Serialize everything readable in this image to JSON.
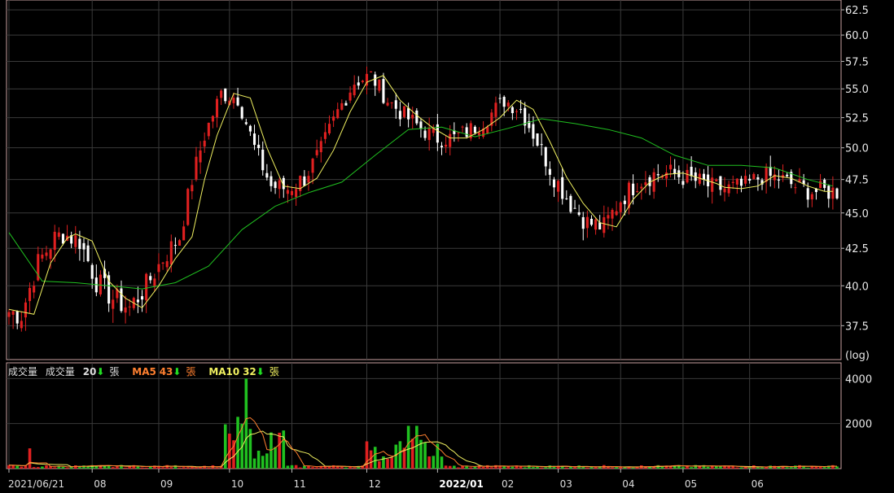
{
  "colors": {
    "background": "#000000",
    "frame": "#c8a0a0",
    "grid": "#3a3a3a",
    "up_candle": "#e02020",
    "down_candle": "#ffffff",
    "ma_short": "#f0f060",
    "ma_long": "#20c020",
    "vol_up": "#e02020",
    "vol_down": "#20c020",
    "vol_ma5": "#ff8030",
    "vol_ma10": "#f0f060"
  },
  "volume_legend": {
    "label": "成交量",
    "vol_label": "成交量",
    "vol_value": "20",
    "vol_unit": "張",
    "ma5_label": "MA5",
    "ma5_value": "43",
    "ma5_unit": "張",
    "ma10_label": "MA10",
    "ma10_value": "32",
    "ma10_unit": "張",
    "arrow": "⬇"
  },
  "chart_data": [
    {
      "type": "candlestick",
      "title": "",
      "y_scale": "log",
      "y_scale_label": "(log)",
      "ylim": [
        35.5,
        63.5
      ],
      "y_ticks": [
        "62.5",
        "60.0",
        "57.5",
        "55.0",
        "52.5",
        "50.0",
        "47.5",
        "45.0",
        "42.5",
        "40.0",
        "37.5"
      ],
      "x_tick_labels": [
        "2021/06/21",
        "08",
        "09",
        "10",
        "11",
        "12",
        "2022/01",
        "02",
        "03",
        "04",
        "05",
        "06"
      ],
      "grid": true,
      "series": [
        {
          "name": "",
          "kind": "ma_short",
          "x": [
            0,
            6,
            10,
            14,
            16,
            20,
            24,
            28,
            32,
            36,
            40,
            44,
            47,
            50,
            54,
            58,
            62,
            66,
            70,
            74,
            78,
            82,
            86,
            90,
            94,
            98,
            102,
            106,
            110,
            114,
            118,
            122,
            126,
            130,
            134,
            138,
            142,
            146,
            150,
            154,
            158,
            162,
            166,
            170,
            172,
            176,
            180,
            184,
            188,
            192,
            196,
            198
          ],
          "values": [
            38.5,
            38.2,
            41.5,
            43.2,
            43.5,
            43.0,
            40.3,
            39.2,
            38.6,
            40.0,
            41.8,
            43.3,
            47.5,
            51.0,
            54.6,
            54.2,
            50.0,
            47.0,
            46.8,
            47.6,
            49.8,
            53.0,
            55.6,
            56.2,
            54.0,
            52.7,
            51.6,
            50.8,
            50.8,
            51.5,
            52.5,
            54.0,
            53.2,
            50.5,
            47.7,
            45.7,
            44.3,
            44.0,
            46.0,
            47.3,
            47.9,
            48.0,
            47.6,
            47.2,
            46.9,
            46.8,
            47.0,
            47.8,
            47.6,
            47.0,
            46.6,
            46.6
          ]
        },
        {
          "name": "",
          "kind": "ma_long",
          "x": [
            0,
            8,
            16,
            24,
            32,
            40,
            48,
            56,
            64,
            72,
            80,
            88,
            96,
            104,
            112,
            120,
            128,
            136,
            144,
            152,
            160,
            168,
            176,
            184,
            192,
            198
          ],
          "values": [
            43.6,
            40.3,
            40.2,
            40.0,
            39.8,
            40.2,
            41.3,
            43.8,
            45.5,
            46.5,
            47.3,
            49.4,
            51.5,
            51.7,
            50.9,
            51.6,
            52.4,
            52.0,
            51.5,
            50.8,
            49.4,
            48.6,
            48.6,
            48.4,
            47.5,
            47.0
          ]
        }
      ],
      "candles_note": "Daily OHLC candlesticks, red = up, white = down"
    },
    {
      "type": "bar",
      "title": "",
      "ylabel": "成交量",
      "ylim": [
        0,
        4700
      ],
      "y_ticks": [
        "4000",
        "2000"
      ],
      "series": [
        {
          "name": "成交量"
        },
        {
          "name": "MA5"
        },
        {
          "name": "MA10"
        }
      ]
    }
  ]
}
